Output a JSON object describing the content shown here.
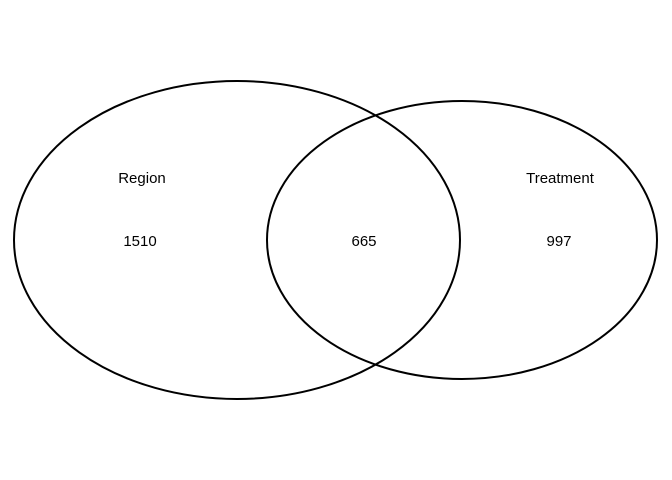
{
  "venn": {
    "sets": [
      {
        "label": "Region",
        "only_count": "1510"
      },
      {
        "label": "Treatment",
        "only_count": "997"
      }
    ],
    "intersection_count": "665",
    "stroke_color": "#000000",
    "background_color": "#ffffff"
  }
}
